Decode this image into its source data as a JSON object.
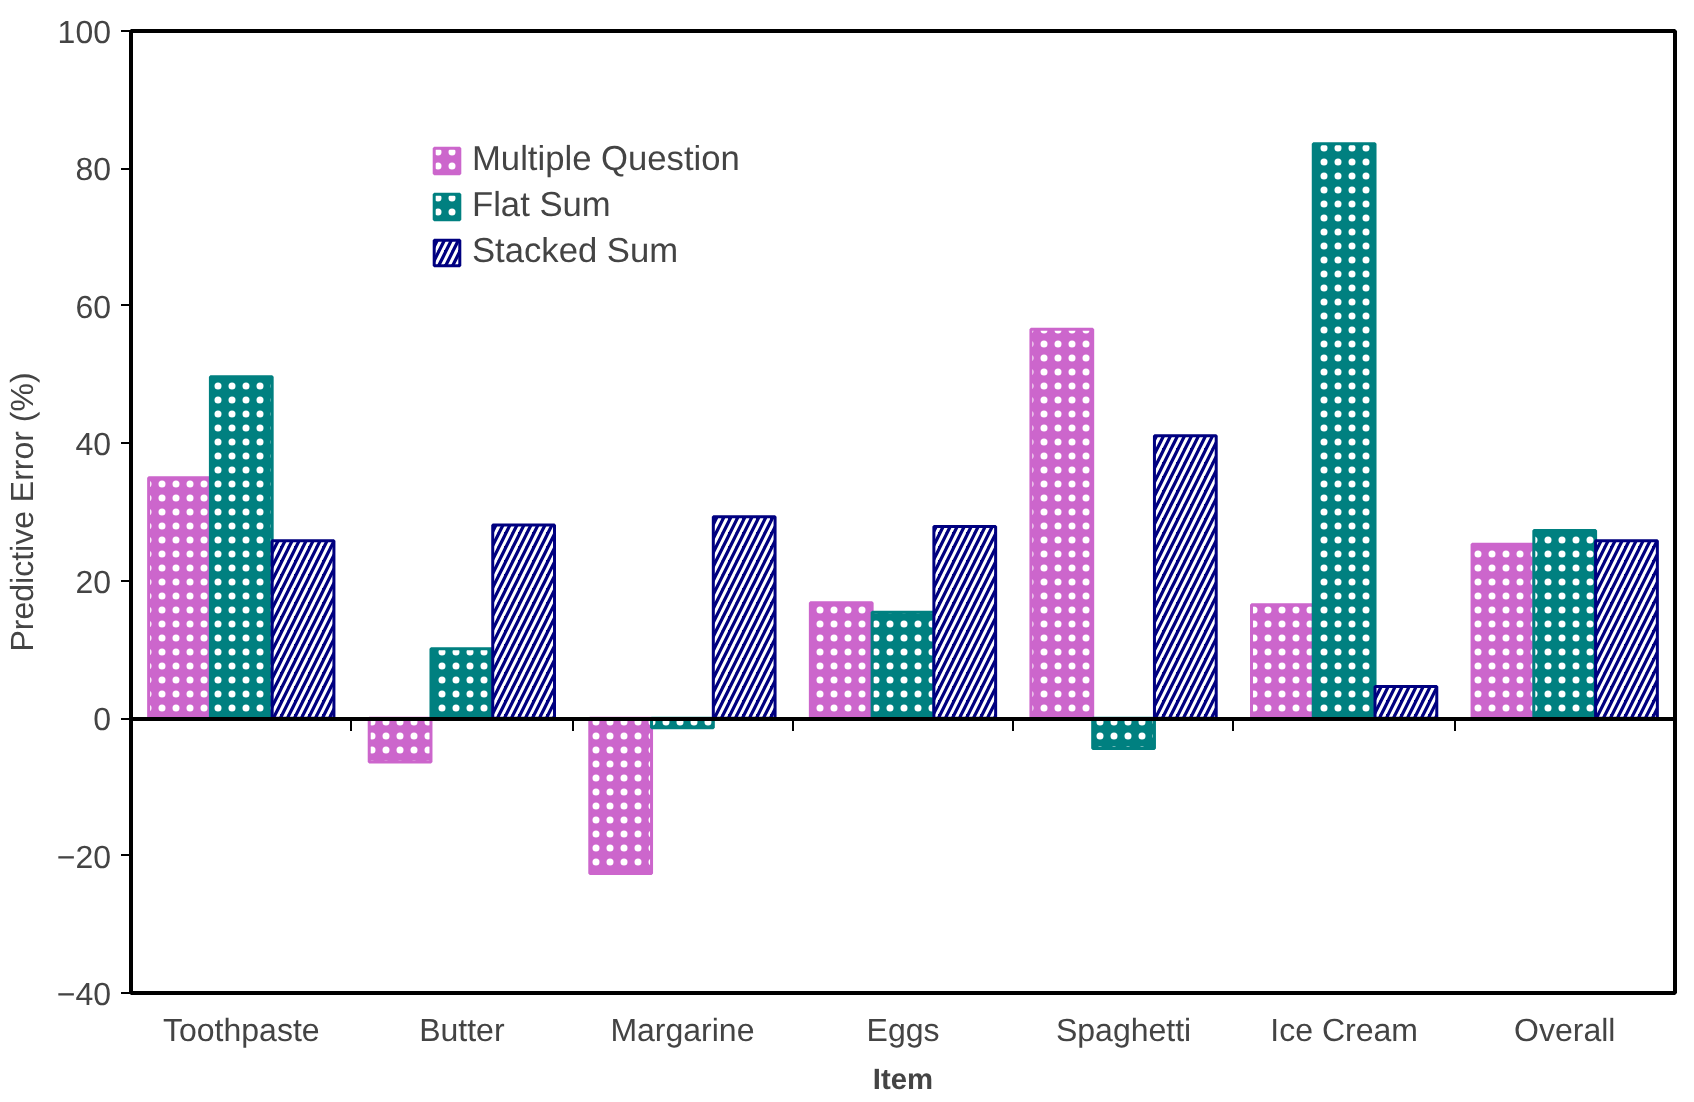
{
  "chart_data": {
    "type": "bar",
    "xlabel": "Item",
    "ylabel": "Predictive Error (%)",
    "categories": [
      "Toothpaste",
      "Butter",
      "Margarine",
      "Eggs",
      "Spaghetti",
      "Ice Cream",
      "Overall"
    ],
    "series": [
      {
        "name": "Multiple Question",
        "color": "#cc66cc",
        "values": [
          35,
          -6.4,
          -22.6,
          16.8,
          56.6,
          16.5,
          25.3
        ]
      },
      {
        "name": "Flat Sum",
        "color": "#008080",
        "values": [
          49.7,
          10.1,
          -1.4,
          15.4,
          -4.4,
          83.6,
          27.3
        ]
      },
      {
        "name": "Stacked Sum",
        "color": "#000080",
        "values": [
          25.8,
          28.1,
          29.3,
          27.9,
          41.1,
          4.6,
          25.8
        ]
      }
    ],
    "ylim": [
      -40,
      100
    ],
    "yticks": [
      -40,
      -20,
      0,
      20,
      40,
      60,
      80,
      100
    ],
    "legend": "top left"
  }
}
